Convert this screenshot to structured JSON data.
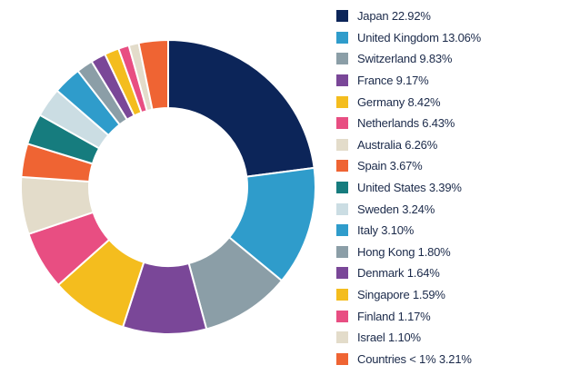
{
  "chart_data": {
    "type": "donut",
    "legend_position": "right",
    "slices": [
      {
        "label": "Japan 22.92%",
        "value": 22.92,
        "color": "#0c2559"
      },
      {
        "label": "United Kingdom 13.06%",
        "value": 13.06,
        "color": "#2f9ccb"
      },
      {
        "label": "Switzerland 9.83%",
        "value": 9.83,
        "color": "#8b9ea7"
      },
      {
        "label": "France 9.17%",
        "value": 9.17,
        "color": "#7a4798"
      },
      {
        "label": "Germany 8.42%",
        "value": 8.42,
        "color": "#f4bd1e"
      },
      {
        "label": "Netherlands 6.43%",
        "value": 6.43,
        "color": "#e84e82"
      },
      {
        "label": "Australia 6.26%",
        "value": 6.26,
        "color": "#e3dcca"
      },
      {
        "label": "Spain 3.67%",
        "value": 3.67,
        "color": "#ef6433"
      },
      {
        "label": "United States 3.39%",
        "value": 3.39,
        "color": "#167c7e"
      },
      {
        "label": "Sweden 3.24%",
        "value": 3.24,
        "color": "#cbdde3"
      },
      {
        "label": "Italy 3.10%",
        "value": 3.1,
        "color": "#2f9ccb"
      },
      {
        "label": "Hong Kong 1.80%",
        "value": 1.8,
        "color": "#8b9ea7"
      },
      {
        "label": "Denmark 1.64%",
        "value": 1.64,
        "color": "#7a4798"
      },
      {
        "label": "Singapore 1.59%",
        "value": 1.59,
        "color": "#f4bd1e"
      },
      {
        "label": "Finland 1.17%",
        "value": 1.17,
        "color": "#e84e82"
      },
      {
        "label": "Israel 1.10%",
        "value": 1.1,
        "color": "#e3dcca"
      },
      {
        "label": "Countries < 1% 3.21%",
        "value": 3.21,
        "color": "#ef6433"
      }
    ]
  }
}
